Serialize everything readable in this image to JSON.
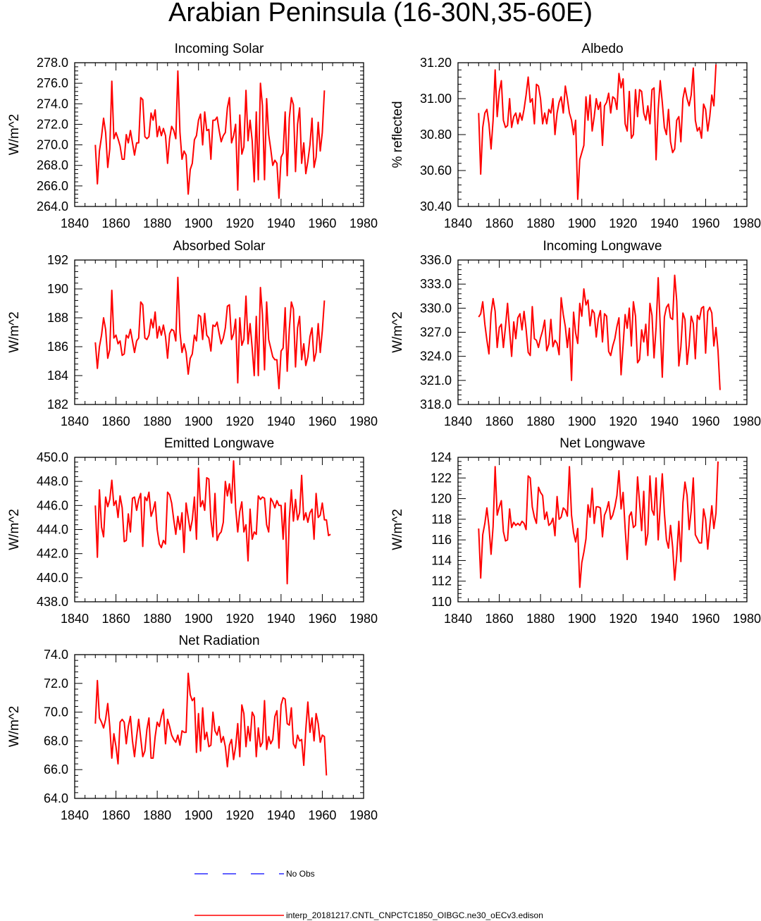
{
  "title": "Arabian Peninsula (16-30N,35-60E)",
  "colors": {
    "model_line": "#ff0000",
    "obs_line": "#0000ff",
    "axes": "#000000"
  },
  "legend": {
    "obs_label": "No Obs",
    "model_label": "interp_20181217.CNTL_CNPCTC1850_OIBGC.ne30_oECv3.edison"
  },
  "chart_data": [
    {
      "type": "line",
      "title": "Incoming Solar",
      "ylabel": "W/m^2",
      "xlabel": "",
      "xlim": [
        1840,
        1980
      ],
      "ylim": [
        264,
        278
      ],
      "xticks": [
        "1840",
        "1860",
        "1880",
        "1900",
        "1920",
        "1940",
        "1960",
        "1980"
      ],
      "yticks": [
        "264.0",
        "266.0",
        "268.0",
        "270.0",
        "272.0",
        "274.0",
        "276.0",
        "278.0"
      ],
      "x_start": 1850,
      "series": [
        {
          "name": "model",
          "values": [
            270.0,
            266.2,
            269.4,
            270.8,
            272.6,
            271.2,
            267.8,
            269.6,
            276.2,
            270.6,
            271.2,
            270.6,
            269.9,
            268.6,
            268.6,
            271.0,
            270.2,
            271.4,
            270.2,
            269.0,
            270.2,
            270.2,
            274.6,
            274.4,
            270.8,
            270.6,
            270.8,
            273.1,
            272.4,
            273.4,
            270.8,
            271.8,
            270.9,
            271.6,
            270.9,
            268.2,
            270.6,
            271.8,
            271.4,
            270.6,
            277.2,
            271.2,
            268.6,
            269.4,
            269.0,
            265.2,
            267.6,
            268.2,
            270.5,
            270.9,
            272.4,
            273.0,
            270.0,
            273.2,
            271.4,
            271.5,
            268.6,
            272.4,
            272.4,
            272.7,
            271.4,
            270.3,
            270.9,
            271.2,
            273.6,
            274.6,
            270.2,
            270.9,
            272.0,
            265.6,
            272.9,
            269.1,
            269.8,
            275.3,
            270.4,
            272.4,
            270.4,
            266.4,
            273.2,
            266.6,
            276.0,
            273.8,
            266.6,
            274.5,
            271.0,
            269.6,
            268.0,
            268.5,
            268.2,
            264.8,
            268.8,
            269.2,
            273.2,
            267.0,
            272.6,
            274.6,
            273.9,
            267.4,
            272.0,
            273.6,
            268.2,
            270.2,
            267.2,
            268.4,
            270.0,
            272.6,
            267.8,
            268.8,
            272.2,
            269.4,
            271.2,
            275.3
          ]
        }
      ]
    },
    {
      "type": "line",
      "title": "Albedo",
      "ylabel": "% reflected",
      "xlabel": "",
      "xlim": [
        1840,
        1980
      ],
      "ylim": [
        30.4,
        31.2
      ],
      "xticks": [
        "1840",
        "1860",
        "1880",
        "1900",
        "1920",
        "1940",
        "1960",
        "1980"
      ],
      "yticks": [
        "30.40",
        "30.60",
        "30.80",
        "31.00",
        "31.20"
      ],
      "x_start": 1850,
      "series": [
        {
          "name": "model",
          "values": [
            30.92,
            30.58,
            30.84,
            30.92,
            30.94,
            30.86,
            30.72,
            30.88,
            31.16,
            30.9,
            31.04,
            31.1,
            30.88,
            30.84,
            30.85,
            31.0,
            30.84,
            30.9,
            30.92,
            30.86,
            30.92,
            30.88,
            30.94,
            31.02,
            31.12,
            30.98,
            31.0,
            30.86,
            31.08,
            31.07,
            31.0,
            30.86,
            30.92,
            30.86,
            30.94,
            30.92,
            31.0,
            30.8,
            30.92,
            30.98,
            31.01,
            30.92,
            31.07,
            31.0,
            30.92,
            30.88,
            30.8,
            30.88,
            30.44,
            30.66,
            30.7,
            30.74,
            31.01,
            30.88,
            31.02,
            30.82,
            30.9,
            31.0,
            30.94,
            30.98,
            30.74,
            30.96,
            30.98,
            31.03,
            30.92,
            31.01,
            31.0,
            30.94,
            31.14,
            31.06,
            31.11,
            30.86,
            30.82,
            31.04,
            30.78,
            30.8,
            31.05,
            30.9,
            31.05,
            31.04,
            30.92,
            30.88,
            30.96,
            30.86,
            31.05,
            31.06,
            30.66,
            30.94,
            31.1,
            30.98,
            30.84,
            30.8,
            30.94,
            30.76,
            30.7,
            30.72,
            30.88,
            30.9,
            30.76,
            31.0,
            31.06,
            31.0,
            30.96,
            31.02,
            31.17,
            30.88,
            30.82,
            30.84,
            30.78,
            30.97,
            30.94,
            30.82,
            30.9,
            31.02,
            30.96,
            31.19
          ]
        }
      ]
    },
    {
      "type": "line",
      "title": "Absorbed Solar",
      "ylabel": "W/m^2",
      "xlabel": "",
      "xlim": [
        1840,
        1980
      ],
      "ylim": [
        182,
        192
      ],
      "xticks": [
        "1840",
        "1860",
        "1880",
        "1900",
        "1920",
        "1940",
        "1960",
        "1980"
      ],
      "yticks": [
        "182",
        "184",
        "186",
        "188",
        "190",
        "192"
      ],
      "x_start": 1850,
      "series": [
        {
          "name": "model",
          "values": [
            186.3,
            184.5,
            186.0,
            186.8,
            188.0,
            187.2,
            185.2,
            185.8,
            189.9,
            186.6,
            186.8,
            186.2,
            186.4,
            185.4,
            185.5,
            186.8,
            186.6,
            187.2,
            186.4,
            185.6,
            186.4,
            186.6,
            189.1,
            188.9,
            186.6,
            186.5,
            186.8,
            187.9,
            187.3,
            188.4,
            186.6,
            187.4,
            186.8,
            187.5,
            186.7,
            185.2,
            186.9,
            187.2,
            187.1,
            186.4,
            190.8,
            187.0,
            185.6,
            186.2,
            185.6,
            184.1,
            185.2,
            185.5,
            186.8,
            186.4,
            188.2,
            188.1,
            186.5,
            188.3,
            186.8,
            186.6,
            185.7,
            187.5,
            187.4,
            187.7,
            186.9,
            186.2,
            186.6,
            187.3,
            188.8,
            188.9,
            186.5,
            186.9,
            187.9,
            183.5,
            188.0,
            186.1,
            186.5,
            189.5,
            186.2,
            187.6,
            185.9,
            184.0,
            188.1,
            184.0,
            190.1,
            188.2,
            184.4,
            189.1,
            186.5,
            185.9,
            185.3,
            185.1,
            185.1,
            183.1,
            185.7,
            185.9,
            188.7,
            184.3,
            187.2,
            189.1,
            188.6,
            184.6,
            187.3,
            188.1,
            185.1,
            186.2,
            184.7,
            185.3,
            186.7,
            187.3,
            185.0,
            185.6,
            187.6,
            185.6,
            187.1,
            189.2
          ]
        }
      ]
    },
    {
      "type": "line",
      "title": "Incoming Longwave",
      "ylabel": "W/m^2",
      "xlabel": "",
      "xlim": [
        1840,
        1980
      ],
      "ylim": [
        318,
        336
      ],
      "xticks": [
        "1840",
        "1860",
        "1880",
        "1900",
        "1920",
        "1940",
        "1960",
        "1980"
      ],
      "yticks": [
        "318.0",
        "321.0",
        "324.0",
        "327.0",
        "330.0",
        "333.0",
        "336.0"
      ],
      "x_start": 1850,
      "series": [
        {
          "name": "model",
          "values": [
            328.9,
            329.3,
            330.8,
            328.0,
            326.0,
            324.3,
            329.3,
            331.2,
            329.6,
            325.1,
            327.6,
            328.0,
            325.1,
            327.7,
            330.6,
            327.2,
            324.0,
            328.3,
            326.2,
            328.8,
            329.3,
            327.3,
            329.6,
            327.4,
            324.5,
            324.1,
            330.2,
            326.2,
            326.0,
            325.1,
            326.3,
            327.2,
            328.5,
            324.7,
            325.5,
            328.6,
            325.2,
            326.0,
            325.6,
            324.2,
            331.3,
            329.2,
            327.7,
            325.1,
            327.5,
            321.0,
            329.5,
            326.9,
            325.6,
            330.6,
            329.0,
            332.4,
            330.4,
            331.0,
            327.8,
            329.8,
            329.4,
            326.4,
            328.7,
            329.7,
            325.8,
            329.3,
            329.0,
            324.6,
            324.1,
            325.3,
            326.2,
            327.7,
            328.8,
            321.7,
            325.4,
            329.2,
            327.5,
            330.0,
            325.3,
            330.8,
            329.0,
            323.2,
            323.6,
            327.3,
            325.8,
            328.0,
            324.1,
            330.6,
            329.1,
            323.8,
            327.6,
            333.8,
            327.7,
            321.4,
            328.9,
            330.1,
            330.5,
            328.8,
            328.6,
            334.1,
            330.9,
            322.8,
            325.2,
            329.4,
            328.6,
            323.0,
            325.4,
            329.0,
            328.1,
            323.7,
            329.1,
            328.6,
            330.0,
            330.2,
            324.4,
            329.6,
            330.1,
            329.4,
            325.3,
            327.6,
            324.7,
            319.8
          ]
        }
      ]
    },
    {
      "type": "line",
      "title": "Emitted Longwave",
      "ylabel": "W/m^2",
      "xlabel": "",
      "xlim": [
        1840,
        1980
      ],
      "ylim": [
        438,
        450
      ],
      "xticks": [
        "1840",
        "1860",
        "1880",
        "1900",
        "1920",
        "1940",
        "1960",
        "1980"
      ],
      "yticks": [
        "438.0",
        "440.0",
        "442.0",
        "444.0",
        "446.0",
        "448.0",
        "450.0"
      ],
      "x_start": 1850,
      "series": [
        {
          "name": "model",
          "values": [
            446.0,
            441.7,
            447.3,
            444.2,
            443.4,
            446.7,
            445.9,
            446.5,
            448.1,
            446.0,
            446.4,
            445.0,
            446.8,
            445.8,
            443.0,
            443.1,
            445.3,
            443.8,
            446.6,
            446.7,
            445.6,
            446.5,
            447.0,
            442.6,
            446.7,
            446.4,
            447.1,
            445.1,
            445.6,
            446.3,
            444.0,
            442.8,
            442.5,
            443.1,
            442.8,
            447.1,
            446.9,
            446.2,
            444.8,
            443.6,
            445.1,
            444.0,
            445.4,
            442.1,
            446.2,
            445.0,
            443.9,
            444.8,
            446.7,
            443.2,
            449.1,
            445.9,
            446.4,
            445.6,
            448.3,
            448.2,
            444.8,
            443.4,
            447.0,
            443.1,
            443.6,
            443.8,
            444.6,
            448.0,
            446.8,
            447.8,
            446.2,
            449.7,
            445.8,
            443.8,
            445.5,
            446.3,
            443.8,
            444.4,
            441.4,
            445.7,
            443.2,
            443.8,
            443.6,
            446.8,
            446.5,
            446.7,
            446.6,
            444.4,
            443.8,
            446.6,
            446.3,
            445.8,
            446.4,
            446.0,
            446.0,
            443.2,
            446.2,
            439.5,
            444.9,
            447.3,
            444.7,
            446.5,
            444.8,
            445.4,
            448.5,
            444.8,
            445.4,
            444.6,
            445.4,
            445.7,
            443.2,
            447.0,
            445.0,
            445.2,
            446.2,
            444.8,
            444.8,
            443.5,
            443.6
          ]
        }
      ]
    },
    {
      "type": "line",
      "title": "Net Longwave",
      "ylabel": "W/m^2",
      "xlabel": "",
      "xlim": [
        1840,
        1980
      ],
      "ylim": [
        110,
        124
      ],
      "xticks": [
        "1840",
        "1860",
        "1880",
        "1900",
        "1920",
        "1940",
        "1960",
        "1980"
      ],
      "yticks": [
        "110",
        "112",
        "114",
        "116",
        "118",
        "120",
        "122",
        "124"
      ],
      "x_start": 1850,
      "series": [
        {
          "name": "model",
          "values": [
            117.1,
            112.3,
            116.5,
            117.6,
            119.1,
            117.3,
            114.6,
            117.3,
            123.1,
            118.4,
            119.2,
            119.8,
            116.8,
            115.9,
            116.0,
            119.0,
            117.2,
            117.7,
            117.4,
            117.6,
            117.4,
            117.8,
            117.6,
            117.0,
            122.2,
            122.0,
            119.2,
            118.2,
            117.6,
            121.1,
            120.6,
            120.3,
            118.0,
            118.7,
            117.4,
            117.6,
            118.1,
            116.4,
            120.2,
            118.0,
            118.2,
            119.1,
            118.9,
            118.3,
            123.1,
            118.4,
            116.7,
            115.8,
            117.1,
            111.4,
            113.8,
            114.8,
            116.1,
            119.4,
            118.2,
            121.0,
            117.6,
            119.2,
            119.2,
            119.1,
            116.3,
            118.4,
            118.9,
            119.7,
            118.0,
            118.4,
            119.2,
            120.3,
            122.7,
            119.0,
            120.6,
            117.1,
            114.1,
            118.3,
            118.7,
            117.2,
            117.4,
            122.1,
            119.6,
            116.9,
            120.7,
            115.5,
            116.6,
            122.2,
            118.9,
            118.4,
            122.0,
            116.0,
            119.3,
            122.4,
            118.6,
            116.0,
            115.2,
            117.4,
            115.3,
            112.1,
            114.5,
            117.8,
            113.9,
            119.6,
            121.6,
            120.3,
            117.0,
            118.8,
            122.0,
            116.5,
            116.1,
            115.7,
            115.7,
            119.0,
            118.0,
            115.1,
            117.3,
            119.3,
            117.1,
            118.6,
            123.6
          ]
        }
      ]
    },
    {
      "type": "line",
      "title": "Net Radiation",
      "ylabel": "W/m^2",
      "xlabel": "",
      "xlim": [
        1840,
        1980
      ],
      "ylim": [
        64,
        74
      ],
      "xticks": [
        "1840",
        "1860",
        "1880",
        "1900",
        "1920",
        "1940",
        "1960",
        "1980"
      ],
      "yticks": [
        "64.0",
        "66.0",
        "68.0",
        "70.0",
        "72.0",
        "74.0"
      ],
      "x_start": 1850,
      "series": [
        {
          "name": "model",
          "values": [
            69.2,
            72.2,
            69.6,
            69.3,
            68.9,
            69.5,
            70.6,
            69.0,
            66.8,
            68.5,
            67.6,
            66.4,
            69.3,
            69.5,
            69.3,
            67.8,
            69.0,
            69.7,
            68.0,
            66.9,
            68.3,
            69.5,
            68.2,
            66.9,
            67.3,
            68.8,
            69.6,
            66.8,
            66.8,
            68.3,
            69.3,
            69.0,
            69.7,
            70.2,
            67.8,
            69.5,
            69.0,
            68.4,
            68.1,
            67.9,
            68.4,
            67.7,
            68.7,
            68.6,
            68.6,
            72.7,
            71.2,
            70.8,
            71.0,
            67.2,
            69.9,
            67.3,
            70.3,
            68.1,
            68.6,
            67.6,
            67.7,
            70.0,
            68.7,
            68.4,
            69.0,
            67.9,
            68.3,
            67.6,
            66.2,
            67.7,
            68.1,
            66.7,
            67.6,
            69.2,
            66.9,
            70.5,
            69.9,
            67.6,
            69.0,
            68.0,
            70.0,
            69.7,
            66.9,
            68.9,
            67.6,
            67.9,
            70.8,
            67.4,
            68.3,
            67.8,
            68.1,
            69.7,
            70.1,
            67.5,
            70.5,
            71.0,
            70.9,
            69.2,
            69.1,
            70.3,
            67.8,
            67.5,
            68.4,
            68.0,
            68.1,
            66.3,
            68.8,
            70.7,
            68.6,
            69.6,
            68.0,
            69.9,
            69.2,
            67.9,
            68.4,
            68.3,
            65.6
          ]
        }
      ]
    }
  ]
}
